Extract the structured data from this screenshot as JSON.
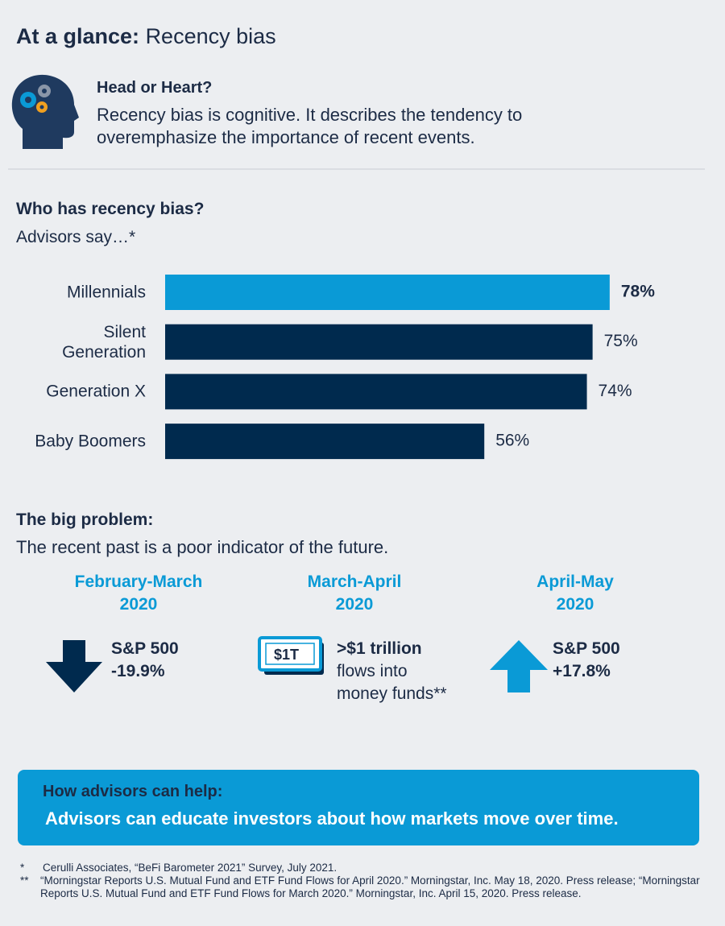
{
  "header": {
    "title_bold": "At a glance:",
    "title": "Recency bias"
  },
  "intro": {
    "heading": "Head or Heart?",
    "text": "Recency bias is cognitive. It describes the tendency to overemphasize the importance of recent events."
  },
  "chart_data": {
    "type": "bar",
    "orientation": "horizontal",
    "title": "Who has recency bias?",
    "subtitle": "Advisors say…*",
    "categories": [
      "Millennials",
      "Silent Generation",
      "Generation X",
      "Baby Boomers"
    ],
    "values": [
      78,
      75,
      74,
      56
    ],
    "value_labels": [
      "78%",
      "75%",
      "74%",
      "56%"
    ],
    "colors": [
      "#0a9ad6",
      "#002a4e",
      "#002a4e",
      "#002a4e"
    ],
    "xlim": [
      0,
      80
    ]
  },
  "problem": {
    "heading": "The big problem:",
    "text": "The recent past is a poor indicator of the future.",
    "periods": [
      {
        "label": "February-March",
        "year": "2020",
        "lines": [
          "S&P 500",
          "-19.9%"
        ]
      },
      {
        "label": "March-April",
        "year": "2020",
        "icon_label": "$1T",
        "lines": [
          ">$1 trillion",
          "flows into",
          "money funds**"
        ]
      },
      {
        "label": "April-May",
        "year": "2020",
        "lines": [
          "S&P 500",
          "+17.8%"
        ]
      }
    ]
  },
  "help": {
    "heading": "How advisors can help:",
    "text": "Advisors can educate investors about how markets move over time."
  },
  "footnotes": [
    {
      "marker": "*",
      "text": "Cerulli Associates, “BeFi Barometer 2021” Survey, July 2021."
    },
    {
      "marker": "**",
      "text": "“Morningstar Reports U.S. Mutual Fund and ETF Fund Flows for April 2020.” Morningstar, Inc. May 18, 2020. Press release; “Morningstar Reports U.S. Mutual Fund and ETF Fund Flows for March 2020.” Morningstar, Inc. April 15, 2020. Press release."
    }
  ]
}
